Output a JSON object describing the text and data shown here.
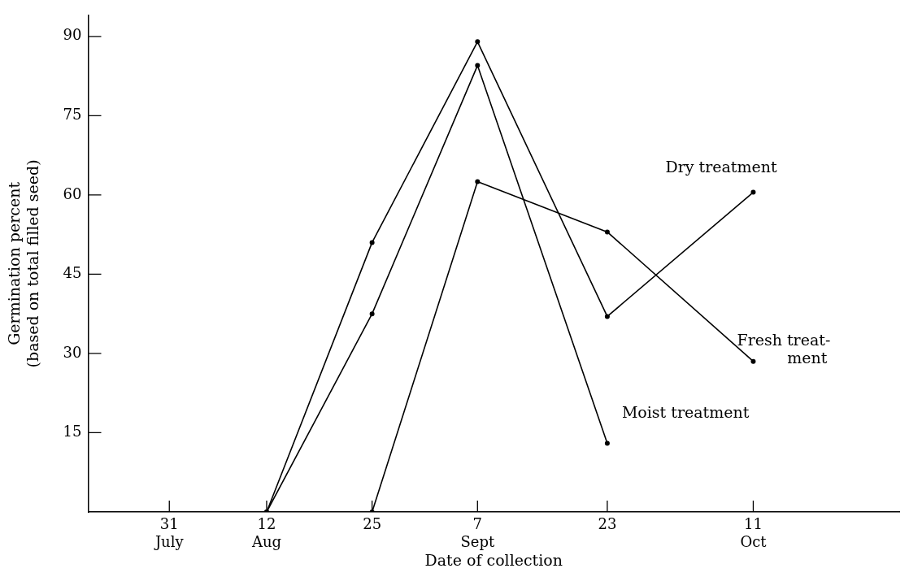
{
  "chart_data": {
    "type": "line",
    "xlabel": "Date of collection",
    "ylabel": "Germination percent\n(based on total filled seed)",
    "x": [
      "--08-12",
      "--08-25",
      "--09-07",
      "--09-23",
      "--10-11"
    ],
    "xlim": [
      "--07-21",
      "--10-29"
    ],
    "xticks": [
      {
        "value": "--07-31",
        "label": "31\nJuly"
      },
      {
        "value": "--08-12",
        "label": "12\nAug"
      },
      {
        "value": "--08-25",
        "label": "25"
      },
      {
        "value": "--09-07",
        "label": "7\nSept"
      },
      {
        "value": "--09-23",
        "label": "23"
      },
      {
        "value": "--10-11",
        "label": "11\nOct"
      }
    ],
    "ylim": [
      0,
      94
    ],
    "yticks": [
      15,
      30,
      45,
      60,
      75,
      90
    ],
    "grid": false,
    "legend": false,
    "marker": "circle",
    "line_style": "solid",
    "series": [
      {
        "name": "Dry treatment",
        "color": "#000000",
        "values": [
          0,
          51,
          89,
          37,
          60.5
        ]
      },
      {
        "name": "Fresh treat-\nment",
        "color": "#000000",
        "values": [
          null,
          0,
          62.5,
          53,
          28.5
        ]
      },
      {
        "name": "Moist treatment",
        "color": "#000000",
        "values": [
          0,
          37.5,
          84.5,
          13,
          null
        ]
      }
    ]
  }
}
